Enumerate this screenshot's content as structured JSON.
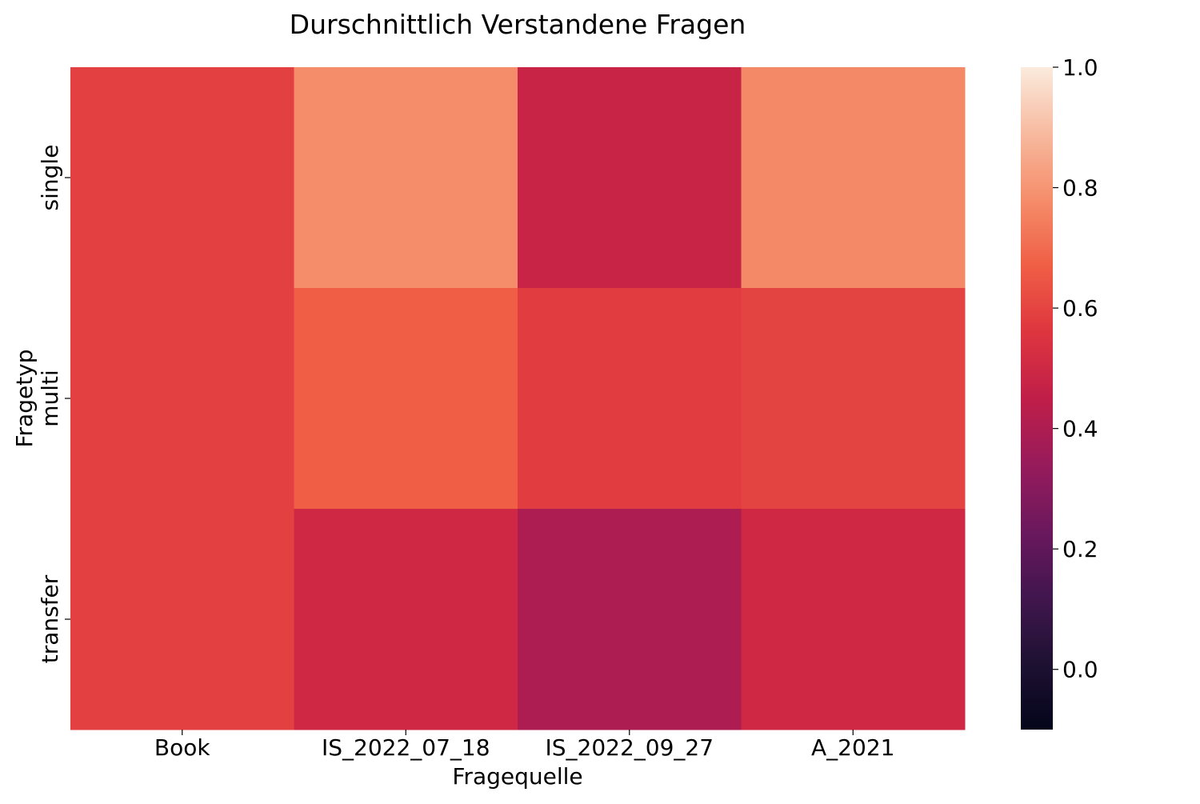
{
  "chart_data": {
    "type": "heatmap",
    "title": "Durschnittlich Verstandene Fragen",
    "xlabel": "Fragequelle",
    "ylabel": "Fragetyp",
    "x_categories": [
      "Book",
      "IS_2022_07_18",
      "IS_2022_09_27",
      "A_2021"
    ],
    "y_categories": [
      "single",
      "multi",
      "transfer"
    ],
    "values": [
      [
        0.59,
        0.78,
        0.48,
        0.77
      ],
      [
        0.59,
        0.67,
        0.58,
        0.6
      ],
      [
        0.59,
        0.5,
        0.4,
        0.5
      ]
    ],
    "colorbar": {
      "min": -0.1,
      "max": 1.0,
      "ticks": [
        0.0,
        0.2,
        0.4,
        0.6,
        0.8,
        1.0
      ],
      "tick_labels": [
        "0.0",
        "0.2",
        "0.4",
        "0.6",
        "0.8",
        "1.0"
      ]
    },
    "colormap": "rocket",
    "grid": false
  }
}
